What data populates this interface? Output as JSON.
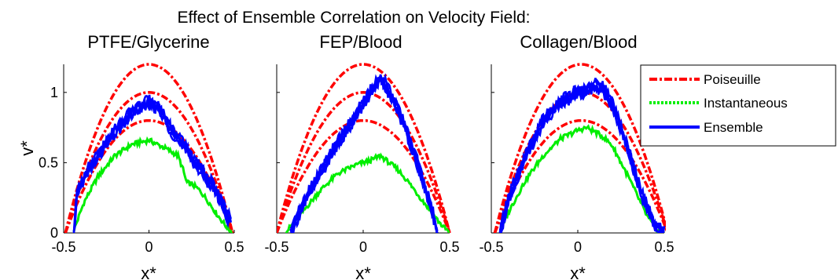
{
  "figure": {
    "title": "Effect of Ensemble Correlation on Velocity Field:"
  },
  "legend": {
    "placement": "right-outside",
    "entries": [
      {
        "label": "Poiseuille",
        "color": "#ff0000",
        "style": "dash-dot"
      },
      {
        "label": "Instantaneous",
        "color": "#00ee00",
        "style": "dotted"
      },
      {
        "label": "Ensemble",
        "color": "#0000ff",
        "style": "solid"
      }
    ]
  },
  "chart_data": [
    {
      "type": "line",
      "title": "PTFE/Glycerine",
      "xlabel": "x*",
      "ylabel": "v*",
      "xlim": [
        -0.5,
        0.5
      ],
      "ylim": [
        0,
        1.2
      ],
      "xticks": [
        "-0.5",
        "0",
        "0.5"
      ],
      "yticks": [
        "0",
        "0.5",
        "1"
      ],
      "grid": false,
      "series": [
        {
          "name": "Poiseuille",
          "kind": "parabola",
          "peaks": [
            0.8,
            1.0,
            1.2
          ],
          "half_width": 0.49,
          "center": 0.0
        },
        {
          "name": "Instantaneous",
          "x": [
            -0.44,
            -0.38,
            -0.3,
            -0.2,
            -0.1,
            0.0,
            0.1,
            0.17,
            0.2,
            0.22,
            0.26,
            0.3,
            0.35,
            0.4,
            0.45,
            0.49
          ],
          "y": [
            0.02,
            0.22,
            0.4,
            0.55,
            0.63,
            0.66,
            0.6,
            0.55,
            0.45,
            0.36,
            0.34,
            0.3,
            0.22,
            0.13,
            0.05,
            0.0
          ]
        },
        {
          "name": "Ensemble",
          "x": [
            -0.44,
            -0.42,
            -0.38,
            -0.3,
            -0.2,
            -0.1,
            0.0,
            0.05,
            0.1,
            0.14,
            0.18,
            0.22,
            0.27,
            0.32,
            0.37,
            0.42,
            0.46,
            0.48
          ],
          "y": [
            0.0,
            0.3,
            0.4,
            0.55,
            0.72,
            0.86,
            0.93,
            0.9,
            0.8,
            0.72,
            0.65,
            0.6,
            0.5,
            0.42,
            0.34,
            0.24,
            0.12,
            0.08
          ]
        }
      ]
    },
    {
      "type": "line",
      "title": "FEP/Blood",
      "xlabel": "x*",
      "ylabel": "",
      "xlim": [
        -0.5,
        0.5
      ],
      "ylim": [
        0,
        1.2
      ],
      "xticks": [
        "-0.5",
        "0",
        "0.5"
      ],
      "grid": false,
      "series": [
        {
          "name": "Poiseuille",
          "kind": "parabola",
          "peaks": [
            0.8,
            1.0,
            1.2
          ],
          "half_width": 0.5,
          "center": 0.0
        },
        {
          "name": "Instantaneous",
          "x": [
            -0.45,
            -0.35,
            -0.25,
            -0.15,
            -0.05,
            0.05,
            0.1,
            0.15,
            0.2,
            0.25,
            0.3,
            0.35,
            0.4,
            0.45,
            0.5
          ],
          "y": [
            0.0,
            0.15,
            0.3,
            0.42,
            0.48,
            0.52,
            0.55,
            0.5,
            0.45,
            0.38,
            0.3,
            0.22,
            0.14,
            0.06,
            0.0
          ]
        },
        {
          "name": "Ensemble",
          "x": [
            -0.42,
            -0.35,
            -0.25,
            -0.15,
            -0.05,
            0.0,
            0.05,
            0.1,
            0.13,
            0.17,
            0.2,
            0.25,
            0.3,
            0.35,
            0.4,
            0.43
          ],
          "y": [
            0.0,
            0.2,
            0.42,
            0.64,
            0.82,
            0.92,
            1.02,
            1.1,
            1.05,
            0.95,
            0.88,
            0.72,
            0.55,
            0.35,
            0.15,
            0.0
          ]
        }
      ]
    },
    {
      "type": "line",
      "title": "Collagen/Blood",
      "xlabel": "x*",
      "ylabel": "",
      "xlim": [
        -0.5,
        0.5
      ],
      "ylim": [
        0,
        1.2
      ],
      "xticks": [
        "-0.5",
        "0",
        "0.5"
      ],
      "grid": false,
      "series": [
        {
          "name": "Poiseuille",
          "kind": "parabola",
          "peaks": [
            0.8,
            1.0,
            1.2
          ],
          "half_width": 0.5,
          "center": 0.02
        },
        {
          "name": "Instantaneous",
          "x": [
            -0.45,
            -0.4,
            -0.3,
            -0.2,
            -0.1,
            0.0,
            0.05,
            0.1,
            0.15,
            0.2,
            0.25,
            0.3,
            0.35,
            0.4,
            0.45,
            0.5
          ],
          "y": [
            0.0,
            0.15,
            0.38,
            0.55,
            0.67,
            0.73,
            0.75,
            0.72,
            0.68,
            0.62,
            0.5,
            0.38,
            0.25,
            0.12,
            0.03,
            0.0
          ]
        },
        {
          "name": "Ensemble",
          "x": [
            -0.45,
            -0.4,
            -0.3,
            -0.2,
            -0.1,
            0.0,
            0.05,
            0.1,
            0.15,
            0.2,
            0.25,
            0.3,
            0.35,
            0.4,
            0.45,
            0.5
          ],
          "y": [
            0.0,
            0.25,
            0.55,
            0.8,
            0.93,
            1.0,
            1.02,
            1.05,
            1.02,
            0.92,
            0.75,
            0.55,
            0.35,
            0.18,
            0.05,
            0.0
          ]
        }
      ]
    }
  ]
}
